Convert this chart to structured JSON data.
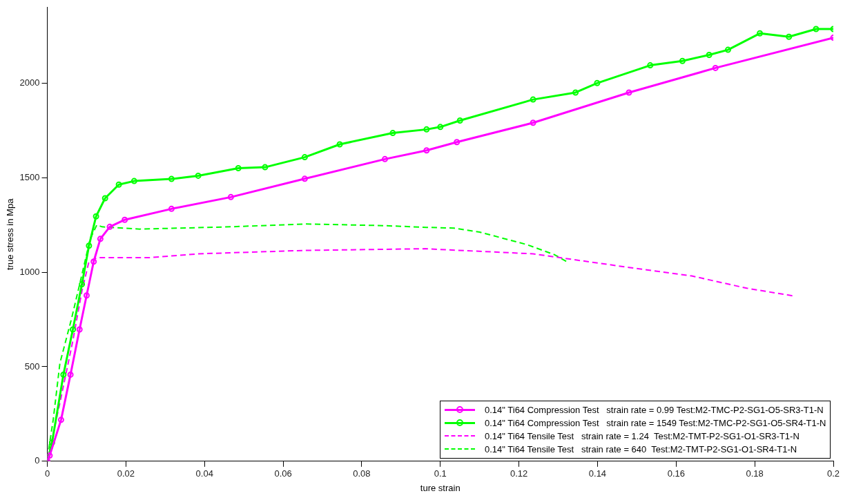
{
  "chart_data": {
    "type": "line",
    "xlabel": "ture strain",
    "ylabel": "true stress in Mpa",
    "xlim": [
      0,
      0.2
    ],
    "xticks": [
      0,
      0.02,
      0.04,
      0.06,
      0.08,
      0.1,
      0.12,
      0.14,
      0.16,
      0.18,
      0.2
    ],
    "ylim": [
      0,
      2400
    ],
    "yticks": [
      0,
      500,
      1000,
      1500,
      2000
    ],
    "grid": false,
    "legend": "bottom right",
    "series": [
      {
        "name": "0.14\" Ti64 Compression Test   strain rate = 0.99 Test:M2-TMC-P2-SG1-O5-SR3-T1-N",
        "color": "#ff00ff",
        "marker": "circle",
        "line_style": "solid",
        "x": [
          0,
          0.0006,
          0.0035,
          0.0059,
          0.0082,
          0.01,
          0.0118,
          0.0135,
          0.0159,
          0.0197,
          0.0316,
          0.0467,
          0.0655,
          0.0859,
          0.0965,
          0.1042,
          0.1236,
          0.148,
          0.17,
          0.2
        ],
        "values": [
          0,
          30,
          219,
          458,
          697,
          877,
          1056,
          1176,
          1240,
          1277,
          1335,
          1397,
          1494,
          1598,
          1644,
          1688,
          1790,
          1950,
          2080,
          2240
        ]
      },
      {
        "name": "0.14\" Ti64 Compression Test   strain rate = 1549 Test:M2-TMC-P2-SG1-O5-SR4-T1-N",
        "color": "#00ff00",
        "marker": "circle",
        "line_style": "solid",
        "x": [
          0,
          0.0012,
          0.0041,
          0.0065,
          0.0088,
          0.0106,
          0.0124,
          0.0147,
          0.0182,
          0.0221,
          0.0316,
          0.0384,
          0.0486,
          0.0554,
          0.0655,
          0.0744,
          0.0879,
          0.0965,
          0.1,
          0.105,
          0.1236,
          0.1344,
          0.1399,
          0.1534,
          0.1616,
          0.1684,
          0.1732,
          0.1813,
          0.1887,
          0.1956,
          0.2
        ],
        "values": [
          0,
          99,
          458,
          697,
          936,
          1140,
          1295,
          1391,
          1463,
          1482,
          1493,
          1510,
          1550,
          1555,
          1608,
          1676,
          1736,
          1755,
          1768,
          1802,
          1913,
          1950,
          2000,
          2094,
          2117,
          2149,
          2176,
          2263,
          2245,
          2286,
          2286
        ]
      },
      {
        "name": "0.14\" Ti64 Tensile Test   strain rate = 1.24  Test:M2-TMT-P2-SG1-O1-SR3-T1-N",
        "color": "#ff00ff",
        "marker": "none",
        "line_style": "dashed",
        "x": [
          0,
          0.0003,
          0.0035,
          0.0065,
          0.0088,
          0.0106,
          0.0127,
          0.026,
          0.0384,
          0.0656,
          0.0961,
          0.1236,
          0.148,
          0.164,
          0.178,
          0.1897
        ],
        "values": [
          0,
          27,
          338,
          637,
          900,
          1056,
          1077,
          1077,
          1097,
          1115,
          1124,
          1097,
          1025,
          980,
          915,
          875
        ]
      },
      {
        "name": "0.14\" Ti64 Tensile Test   strain rate = 640  Test:M2-TMT-P2-SG1-O1-SR4-T1-N",
        "color": "#00ff00",
        "marker": "none",
        "line_style": "dashed",
        "x": [
          0,
          0.0015,
          0.0032,
          0.0062,
          0.0085,
          0.0109,
          0.0126,
          0.0139,
          0.0235,
          0.0452,
          0.066,
          0.0859,
          0.0965,
          0.1035,
          0.11,
          0.122,
          0.129,
          0.1325
        ],
        "values": [
          16,
          219,
          518,
          757,
          960,
          1176,
          1250,
          1240,
          1228,
          1239,
          1255,
          1246,
          1237,
          1233,
          1212,
          1146,
          1093,
          1052
        ]
      }
    ]
  }
}
